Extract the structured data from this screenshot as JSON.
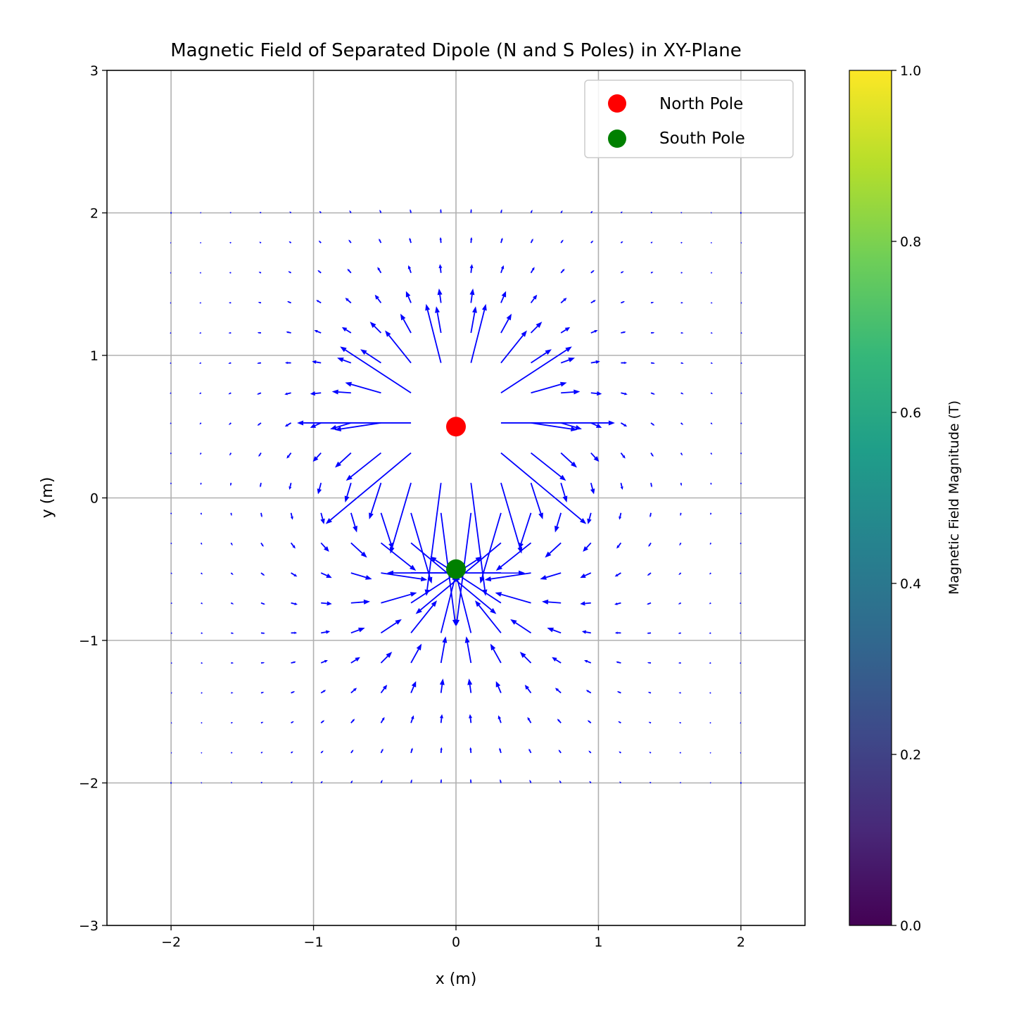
{
  "chart_data": {
    "type": "quiver",
    "title": "Magnetic Field of Separated Dipole (N and S Poles) in XY-Plane",
    "xlabel": "x (m)",
    "ylabel": "y (m)",
    "xlim": [
      -2.45,
      2.45
    ],
    "ylim": [
      -3,
      3
    ],
    "xticks": [
      -2,
      -1,
      0,
      1,
      2
    ],
    "yticks": [
      -3,
      -2,
      -1,
      0,
      1,
      2,
      3
    ],
    "xtick_labels": [
      "−2",
      "−1",
      "0",
      "1",
      "2"
    ],
    "ytick_labels": [
      "−3",
      "−2",
      "−1",
      "0",
      "1",
      "2",
      "3"
    ],
    "grid": true,
    "field": {
      "x_range": [
        -2,
        2
      ],
      "y_range": [
        -2,
        2
      ],
      "n": 20,
      "quiver_scale": 0.1,
      "color": "#0000ff",
      "masked_radius": 0.3,
      "clip_length": 0.8
    },
    "poles": [
      {
        "name": "North Pole",
        "x": 0,
        "y": 0.5,
        "color": "#ff0000",
        "charge": 1
      },
      {
        "name": "South Pole",
        "x": 0,
        "y": -0.5,
        "color": "#008000",
        "charge": -1
      }
    ],
    "legend": {
      "position": "top-right",
      "entries": [
        {
          "label": "North Pole",
          "color": "#ff0000"
        },
        {
          "label": "South Pole",
          "color": "#008000"
        }
      ]
    },
    "colorbar": {
      "label": "Magnetic Field Magnitude (T)",
      "range": [
        0,
        1
      ],
      "ticks": [
        0.0,
        0.2,
        0.4,
        0.6,
        0.8,
        1.0
      ],
      "tick_labels": [
        "0.0",
        "0.2",
        "0.4",
        "0.6",
        "0.8",
        "1.0"
      ],
      "colormap": "viridis",
      "colors": [
        "#440154",
        "#482878",
        "#3e4989",
        "#31688e",
        "#26828e",
        "#1f9e89",
        "#35b779",
        "#6ece58",
        "#b5de2b",
        "#fde725"
      ]
    }
  }
}
